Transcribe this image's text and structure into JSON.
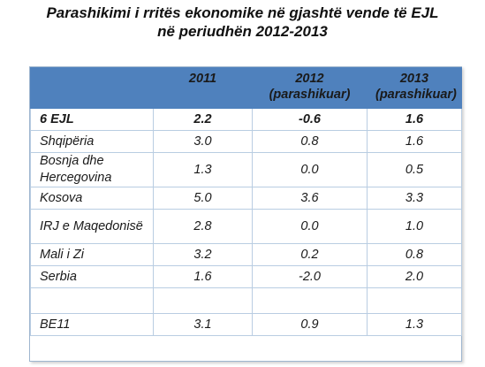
{
  "title": {
    "line1": "Parashikimi i rritës ekonomike në gjashtë vende të EJL",
    "line2": "në periudhën 2012-2013"
  },
  "chart_data": {
    "type": "table",
    "title": "Parashikimi i rritës ekonomike në gjashtë vende të EJL në periudhën 2012-2013",
    "columns": [
      {
        "label": "",
        "sub": ""
      },
      {
        "label": "2011",
        "sub": ""
      },
      {
        "label": "2012",
        "sub": "(parashikuar)"
      },
      {
        "label": "2013",
        "sub": "(parashikuar)"
      }
    ],
    "rows": [
      {
        "name": "6 EJL",
        "v2011": "2.2",
        "v2012": "-0.6",
        "v2013": "1.6"
      },
      {
        "name": "Shqipëria",
        "v2011": "3.0",
        "v2012": "0.8",
        "v2013": "1.6"
      },
      {
        "name": "Bosnja dhe Hercegovina",
        "v2011": "1.3",
        "v2012": "0.0",
        "v2013": "0.5"
      },
      {
        "name": "Kosova",
        "v2011": "5.0",
        "v2012": "3.6",
        "v2013": "3.3"
      },
      {
        "name": "IRJ e Maqedonisë",
        "v2011": "2.8",
        "v2012": "0.0",
        "v2013": "1.0"
      },
      {
        "name": "Mali i Zi",
        "v2011": "3.2",
        "v2012": "0.2",
        "v2013": "0.8"
      },
      {
        "name": "Serbia",
        "v2011": "1.6",
        "v2012": "-2.0",
        "v2013": "2.0"
      },
      {
        "name": "",
        "v2011": "",
        "v2012": "",
        "v2013": ""
      },
      {
        "name": "BE11",
        "v2011": "3.1",
        "v2012": "0.9",
        "v2013": "1.3"
      }
    ],
    "colors": {
      "header_bg": "#4f81bd",
      "border": "#b9cde2"
    }
  }
}
